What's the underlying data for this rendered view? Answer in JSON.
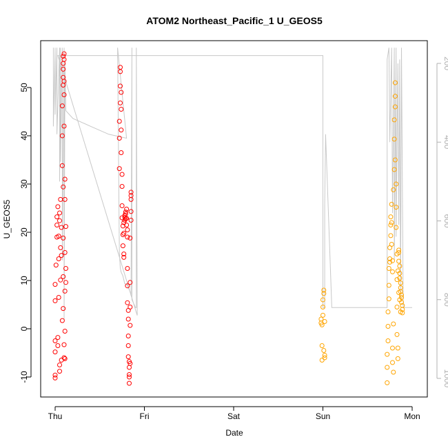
{
  "chart_data": {
    "type": "scatter",
    "title": "ATOM2 Northeast_Pacific_1 U_GEOS5",
    "xlabel": "Date",
    "ylabel": "U_GEOS5",
    "x_ticks": [
      "Thu",
      "Fri",
      "Sat",
      "Sun",
      "Mon"
    ],
    "ylim": [
      -14,
      59
    ],
    "y_ticks": [
      -10,
      0,
      10,
      20,
      30,
      40,
      50
    ],
    "y2_ticks": [
      200,
      400,
      600,
      800,
      1000
    ],
    "y2lim": [
      1040,
      160
    ],
    "colors": {
      "series_red": "#ff0000",
      "series_orange": "#ffa500",
      "pressure_line": "#c8c8c8",
      "right_axis": "#b0b0b0"
    },
    "series": [
      {
        "color": "#ff0000",
        "points": [
          [
            0.0,
            -10.2
          ],
          [
            0.0,
            -9.6
          ],
          [
            0.0,
            -4.8
          ],
          [
            0.0,
            -2.5
          ],
          [
            0.0,
            5.8
          ],
          [
            0.0,
            9.2
          ],
          [
            0.01,
            13.2
          ],
          [
            0.02,
            19.0
          ],
          [
            0.02,
            21.5
          ],
          [
            0.02,
            23.2
          ],
          [
            0.03,
            25.3
          ],
          [
            0.03,
            -1.8
          ],
          [
            0.03,
            -3.5
          ],
          [
            0.04,
            6.5
          ],
          [
            0.04,
            14.5
          ],
          [
            0.04,
            19.2
          ],
          [
            0.05,
            22.4
          ],
          [
            0.05,
            24.0
          ],
          [
            0.05,
            -7.5
          ],
          [
            0.05,
            -8.8
          ],
          [
            0.06,
            10.1
          ],
          [
            0.06,
            16.8
          ],
          [
            0.06,
            26.8
          ],
          [
            0.07,
            21.0
          ],
          [
            0.07,
            15.2
          ],
          [
            0.07,
            -6.5
          ],
          [
            0.08,
            1.7
          ],
          [
            0.08,
            33.8
          ],
          [
            0.08,
            46.2
          ],
          [
            0.08,
            40.0
          ],
          [
            0.09,
            50.5
          ],
          [
            0.09,
            52.1
          ],
          [
            0.09,
            53.8
          ],
          [
            0.09,
            55.0
          ],
          [
            0.09,
            56.5
          ],
          [
            0.09,
            29.4
          ],
          [
            0.09,
            18.8
          ],
          [
            0.09,
            10.8
          ],
          [
            0.09,
            4.2
          ],
          [
            0.1,
            -3.3
          ],
          [
            0.1,
            -6.0
          ],
          [
            0.1,
            57.0
          ],
          [
            0.1,
            55.8
          ],
          [
            0.1,
            51.3
          ],
          [
            0.1,
            48.5
          ],
          [
            0.1,
            42.0
          ],
          [
            0.11,
            31.0
          ],
          [
            0.11,
            26.8
          ],
          [
            0.11,
            15.8
          ],
          [
            0.11,
            7.8
          ],
          [
            0.11,
            -0.5
          ],
          [
            0.11,
            -6.2
          ],
          [
            0.12,
            21.2
          ],
          [
            0.12,
            12.5
          ],
          [
            0.12,
            9.6
          ],
          [
            0.72,
            33.2
          ],
          [
            0.72,
            39.5
          ],
          [
            0.72,
            43.0
          ],
          [
            0.73,
            46.8
          ],
          [
            0.73,
            50.3
          ],
          [
            0.73,
            53.3
          ],
          [
            0.73,
            54.2
          ],
          [
            0.74,
            49.0
          ],
          [
            0.74,
            45.5
          ],
          [
            0.74,
            41.2
          ],
          [
            0.74,
            36.5
          ],
          [
            0.75,
            32.0
          ],
          [
            0.75,
            29.5
          ],
          [
            0.75,
            25.5
          ],
          [
            0.75,
            23.0
          ],
          [
            0.76,
            21.3
          ],
          [
            0.76,
            19.5
          ],
          [
            0.76,
            17.2
          ],
          [
            0.77,
            15.5
          ],
          [
            0.77,
            14.8
          ],
          [
            0.77,
            19.8
          ],
          [
            0.77,
            22.0
          ],
          [
            0.78,
            23.1
          ],
          [
            0.78,
            22.5
          ],
          [
            0.78,
            23.5
          ],
          [
            0.79,
            22.8
          ],
          [
            0.79,
            23.8
          ],
          [
            0.79,
            24.2
          ],
          [
            0.8,
            22.9
          ],
          [
            0.8,
            24.8
          ],
          [
            0.8,
            21.5
          ],
          [
            0.81,
            20.5
          ],
          [
            0.81,
            19.0
          ],
          [
            0.81,
            12.5
          ],
          [
            0.81,
            8.9
          ],
          [
            0.81,
            5.4
          ],
          [
            0.82,
            3.8
          ],
          [
            0.82,
            2.0
          ],
          [
            0.82,
            -1.5
          ],
          [
            0.82,
            -3.5
          ],
          [
            0.82,
            -5.8
          ],
          [
            0.83,
            -6.8
          ],
          [
            0.83,
            -8.0
          ],
          [
            0.83,
            -9.5
          ],
          [
            0.83,
            -10.0
          ],
          [
            0.83,
            -11.3
          ],
          [
            0.84,
            -7.2
          ],
          [
            0.84,
            0.7
          ],
          [
            0.84,
            4.5
          ],
          [
            0.84,
            9.6
          ],
          [
            0.84,
            18.8
          ],
          [
            0.85,
            22.5
          ],
          [
            0.85,
            24.3
          ],
          [
            0.85,
            26.8
          ],
          [
            0.85,
            27.6
          ],
          [
            0.85,
            28.3
          ]
        ]
      },
      {
        "color": "#ffa500",
        "points": [
          [
            2.98,
            2.0
          ],
          [
            2.98,
            1.2
          ],
          [
            2.99,
            0.8
          ],
          [
            2.99,
            -3.5
          ],
          [
            2.99,
            -6.5
          ],
          [
            3.0,
            2.8
          ],
          [
            3.0,
            4.5
          ],
          [
            3.0,
            6.0
          ],
          [
            3.01,
            7.3
          ],
          [
            3.01,
            8.0
          ],
          [
            3.01,
            -4.5
          ],
          [
            3.02,
            -5.5
          ],
          [
            3.02,
            -6.0
          ],
          [
            3.02,
            1.5
          ],
          [
            3.72,
            -11.2
          ],
          [
            3.72,
            -8.0
          ],
          [
            3.72,
            -5.3
          ],
          [
            3.73,
            -2.5
          ],
          [
            3.73,
            0.5
          ],
          [
            3.73,
            3.5
          ],
          [
            3.74,
            6.2
          ],
          [
            3.74,
            9.0
          ],
          [
            3.74,
            12.5
          ],
          [
            3.75,
            13.8
          ],
          [
            3.75,
            14.5
          ],
          [
            3.75,
            16.8
          ],
          [
            3.76,
            19.3
          ],
          [
            3.76,
            21.5
          ],
          [
            3.76,
            23.2
          ],
          [
            3.77,
            25.8
          ],
          [
            3.77,
            22.0
          ],
          [
            3.77,
            17.5
          ],
          [
            3.78,
            14.1
          ],
          [
            3.78,
            11.8
          ],
          [
            3.78,
            -4.0
          ],
          [
            3.78,
            -7.0
          ],
          [
            3.79,
            -9.0
          ],
          [
            3.79,
            1.0
          ],
          [
            3.79,
            28.8
          ],
          [
            3.8,
            33.0
          ],
          [
            3.8,
            39.3
          ],
          [
            3.8,
            43.3
          ],
          [
            3.81,
            46.0
          ],
          [
            3.81,
            48.2
          ],
          [
            3.81,
            51.0
          ],
          [
            3.81,
            35.0
          ],
          [
            3.82,
            30.0
          ],
          [
            3.82,
            25.2
          ],
          [
            3.82,
            21.0
          ],
          [
            3.83,
            15.5
          ],
          [
            3.83,
            10.2
          ],
          [
            3.83,
            4.5
          ],
          [
            3.83,
            -1.2
          ],
          [
            3.84,
            -4.0
          ],
          [
            3.84,
            -6.2
          ],
          [
            3.84,
            12.0
          ],
          [
            3.85,
            14.0
          ],
          [
            3.85,
            15.8
          ],
          [
            3.85,
            16.3
          ],
          [
            3.86,
            13.0
          ],
          [
            3.86,
            11.5
          ],
          [
            3.86,
            10.5
          ],
          [
            3.87,
            9.5
          ],
          [
            3.87,
            8.5
          ],
          [
            3.87,
            7.7
          ],
          [
            3.88,
            7.0
          ],
          [
            3.88,
            6.5
          ],
          [
            3.88,
            5.5
          ],
          [
            3.89,
            4.8
          ],
          [
            3.89,
            4.0
          ],
          [
            3.89,
            3.3
          ],
          [
            3.87,
            3.5
          ],
          [
            3.86,
            6.0
          ],
          [
            3.85,
            7.5
          ]
        ]
      }
    ],
    "pressure_line": [
      [
        -0.02,
        160
      ],
      [
        -0.02,
        360
      ],
      [
        0.0,
        160
      ],
      [
        0.0,
        330
      ],
      [
        0.02,
        160
      ],
      [
        0.02,
        380
      ],
      [
        0.03,
        310
      ],
      [
        0.05,
        160
      ],
      [
        0.05,
        500
      ],
      [
        0.06,
        160
      ],
      [
        0.06,
        450
      ],
      [
        0.08,
        160
      ],
      [
        0.08,
        700
      ],
      [
        0.1,
        160
      ],
      [
        0.1,
        850
      ],
      [
        0.11,
        200
      ],
      [
        0.12,
        320
      ],
      [
        0.2,
        340
      ],
      [
        0.4,
        360
      ],
      [
        0.6,
        380
      ],
      [
        0.8,
        390
      ],
      [
        0.7,
        160
      ],
      [
        0.72,
        680
      ],
      [
        0.73,
        720
      ],
      [
        0.74,
        730
      ],
      [
        0.76,
        740
      ],
      [
        0.78,
        760
      ],
      [
        0.8,
        760
      ],
      [
        0.82,
        770
      ],
      [
        0.84,
        780
      ],
      [
        0.85,
        790
      ],
      [
        0.86,
        160
      ],
      [
        0.86,
        800
      ],
      [
        0.88,
        810
      ],
      [
        0.9,
        820
      ],
      [
        0.91,
        820
      ],
      [
        0.91,
        160
      ],
      [
        0.92,
        840
      ],
      [
        0.03,
        180
      ],
      [
        1.0,
        180
      ],
      [
        2.0,
        180
      ],
      [
        2.95,
        180
      ],
      [
        3.0,
        180
      ],
      [
        3.0,
        820
      ],
      [
        3.02,
        820
      ],
      [
        3.02,
        560
      ],
      [
        3.03,
        380
      ],
      [
        3.1,
        820
      ],
      [
        3.7,
        820
      ],
      [
        3.72,
        820
      ],
      [
        3.72,
        190
      ],
      [
        3.74,
        160
      ],
      [
        3.75,
        400
      ],
      [
        3.77,
        160
      ],
      [
        3.78,
        580
      ],
      [
        3.8,
        160
      ],
      [
        3.8,
        700
      ],
      [
        3.82,
        160
      ],
      [
        3.82,
        640
      ],
      [
        3.84,
        200
      ],
      [
        3.85,
        610
      ],
      [
        3.86,
        190
      ],
      [
        3.87,
        800
      ],
      [
        3.88,
        160
      ],
      [
        3.9,
        820
      ],
      [
        4.0,
        820
      ]
    ]
  }
}
